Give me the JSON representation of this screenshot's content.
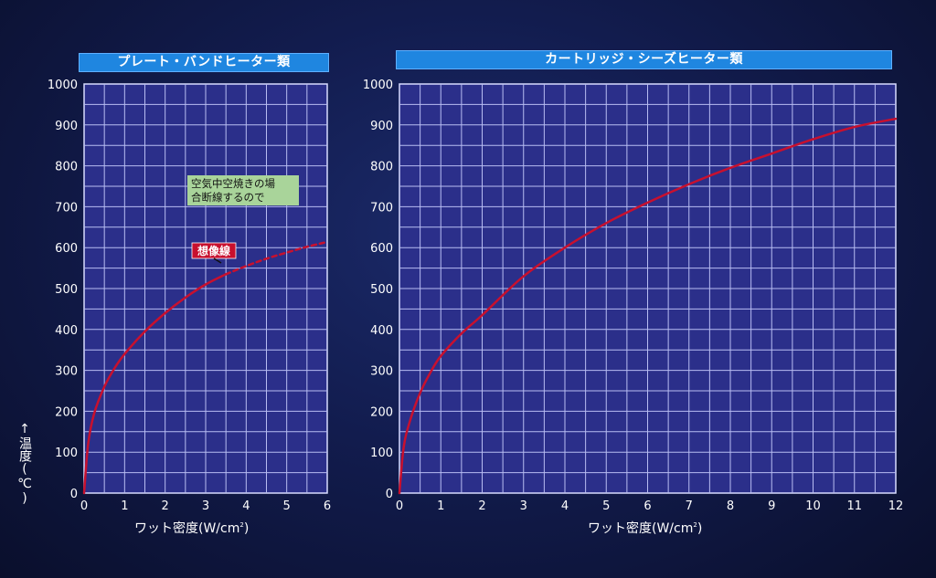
{
  "y_axis_label": {
    "arrow": "↑",
    "text": "温度(℃)"
  },
  "chart_data": [
    {
      "type": "line",
      "title": "プレート・バンドヒーター類",
      "xlabel_main": "ワット密度(W/cm",
      "xlabel_sup": "2",
      "xlabel_close": ")",
      "ylabel": "温度(℃)",
      "xlim": [
        0,
        6
      ],
      "ylim": [
        0,
        1000
      ],
      "x_ticks": [
        "0",
        "1",
        "2",
        "3",
        "4",
        "5",
        "6"
      ],
      "y_ticks": [
        "0",
        "100",
        "200",
        "300",
        "400",
        "500",
        "600",
        "700",
        "800",
        "900",
        "1000"
      ],
      "grid": true,
      "series": [
        {
          "x": [
            0,
            0.1,
            0.25,
            0.5,
            0.75,
            1,
            1.5,
            2,
            2.5,
            3,
            3.5
          ],
          "y": [
            0,
            120,
            195,
            260,
            305,
            340,
            395,
            440,
            478,
            510,
            535
          ],
          "style": "solid",
          "color": "#c8102e"
        },
        {
          "name": "想像線",
          "x": [
            3.5,
            4,
            4.5,
            5,
            5.5,
            6
          ],
          "y": [
            535,
            555,
            573,
            588,
            602,
            614
          ],
          "style": "dashed",
          "color": "#c8102e"
        }
      ],
      "annotations": [
        {
          "text_line1": "空気中空焼きの場",
          "text_line2": "合断線するので",
          "box_color": "#a9d49a"
        },
        {
          "text": "想像線",
          "box_color": "#c8102e"
        }
      ]
    },
    {
      "type": "line",
      "title": "カートリッジ・シーズヒーター類",
      "xlabel_main": "ワット密度(W/cm",
      "xlabel_sup": "2",
      "xlabel_close": ")",
      "ylabel": "温度(℃)",
      "xlim": [
        0,
        12
      ],
      "ylim": [
        0,
        1000
      ],
      "x_ticks": [
        "0",
        "1",
        "2",
        "3",
        "4",
        "5",
        "6",
        "7",
        "8",
        "9",
        "10",
        "11",
        "12"
      ],
      "y_ticks": [
        "0",
        "100",
        "200",
        "300",
        "400",
        "500",
        "600",
        "700",
        "800",
        "900",
        "1000"
      ],
      "grid": true,
      "series": [
        {
          "x": [
            0,
            0.1,
            0.25,
            0.5,
            0.75,
            1,
            1.5,
            2,
            3,
            4,
            5,
            6,
            7,
            8,
            9,
            10,
            11,
            12
          ],
          "y": [
            0,
            110,
            175,
            245,
            295,
            335,
            390,
            435,
            530,
            600,
            660,
            710,
            755,
            795,
            830,
            865,
            895,
            915
          ],
          "style": "solid",
          "color": "#c8102e"
        }
      ]
    }
  ]
}
